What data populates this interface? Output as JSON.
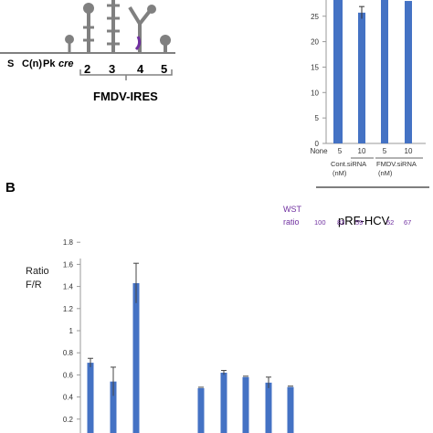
{
  "panel_a": {
    "domain_labels": [
      "S",
      "C(n)",
      "Pk",
      "cre"
    ],
    "stem_loop_numbers": [
      "2",
      "3",
      "4",
      "5"
    ],
    "ires_label": "FMDV-IRES"
  },
  "panel_b_label": "B",
  "pRF_title": "pRF-HCV",
  "wst_label": "WST",
  "wst_ratio_label": "ratio",
  "wst_values": [
    "100",
    "83",
    "59",
    "52",
    "67"
  ],
  "colors": {
    "bar": "#4472c4",
    "wst": "#7030a0",
    "axis": "#999999",
    "diagram": "#808080",
    "accent": "#7030a0"
  },
  "chart_data": [
    {
      "type": "bar",
      "title": "",
      "ylabel": "",
      "categories": [
        "None",
        "5",
        "10",
        "5",
        "10"
      ],
      "group_labels": [
        "Cont.siRNA (nM)",
        "FMDV.siRNA (nM)"
      ],
      "y_ticks": [
        0,
        5,
        10,
        15,
        20,
        25,
        30
      ],
      "ylim": [
        0,
        32
      ],
      "values": [
        32,
        32,
        25.7,
        31,
        28
      ],
      "errors": [
        0,
        0,
        1.2,
        0,
        0
      ]
    },
    {
      "type": "bar",
      "ylabel": "Ratio F/R",
      "y_ticks": [
        0.2,
        0.4,
        0.6,
        0.8,
        1,
        1.2,
        1.4,
        1.6,
        1.8
      ],
      "ylim": [
        0,
        1.8
      ],
      "values": [
        0.71,
        0.54,
        1.43,
        0.48,
        0.62,
        0.58,
        0.53,
        0.49
      ],
      "errors": [
        0.04,
        0.13,
        0.18,
        0.0,
        0.02,
        0.0,
        0.05,
        0.0
      ]
    }
  ]
}
